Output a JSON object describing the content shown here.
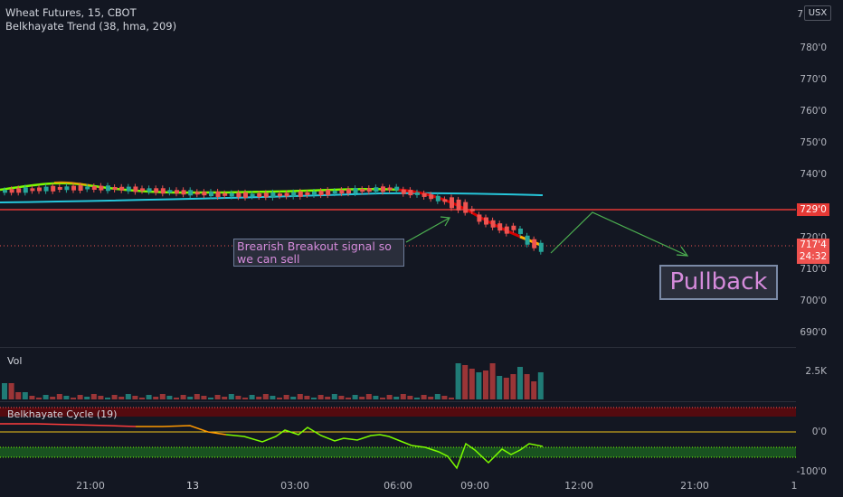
{
  "symbol": {
    "title": "Wheat Futures, 15, CBOT",
    "indicator": "Belkhayate Trend (38, hma, 209)"
  },
  "currency_button": "USX",
  "price_axis": [
    "780'0",
    "770'0",
    "760'0",
    "750'0",
    "740'0",
    "720'0",
    "710'0",
    "700'0",
    "690'0"
  ],
  "price_axis_partial": "7",
  "price_badges": {
    "resistance": "729'0",
    "last_price": "717'4",
    "countdown": "24:32"
  },
  "volume": {
    "label": "Vol",
    "axis": "2.5K"
  },
  "cycle": {
    "label": "Belkhayate Cycle (19)",
    "axis": [
      "0'0",
      "-100'0"
    ]
  },
  "time_axis": [
    "21:00",
    "13",
    "03:00",
    "06:00",
    "09:00",
    "12:00",
    "21:00",
    "1"
  ],
  "annotations": {
    "signal_note": "Brearish Breakout signal so we can sell",
    "pullback_label": "Pullback"
  },
  "colors": {
    "up": "#26a69a",
    "down": "#ef5350",
    "resistance": "#e53935",
    "note_text": "#d58bdb",
    "cyan_line": "#26c6da",
    "cycle_green": "#7cfc00"
  }
}
